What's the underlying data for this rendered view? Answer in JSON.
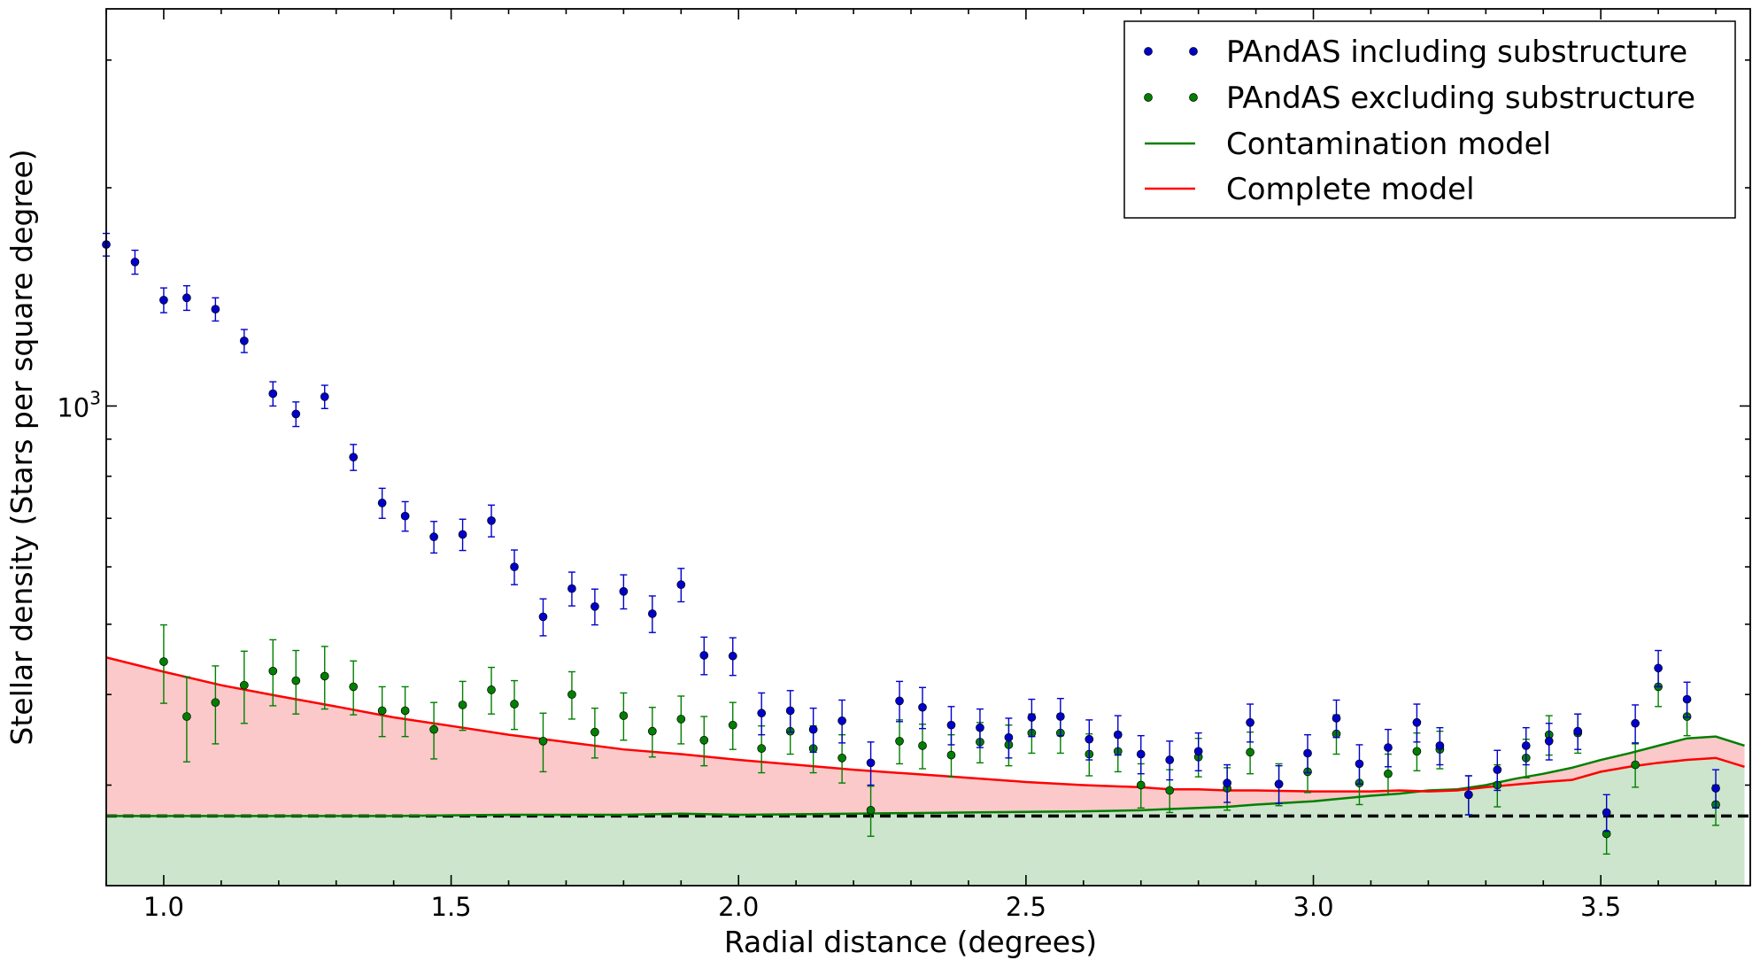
{
  "chart_data": {
    "type": "scatter",
    "title": "",
    "xlabel": "Radial distance (degrees)",
    "ylabel": "Stellar density (Stars per square degree)",
    "xlim": [
      0.9,
      3.76
    ],
    "ylim": [
      218,
      3530
    ],
    "yscale": "log",
    "x_ticks": [
      1.0,
      1.5,
      2.0,
      2.5,
      3.0,
      3.5
    ],
    "x_tick_labels": [
      "1.0",
      "1.5",
      "2.0",
      "2.5",
      "3.0",
      "3.5"
    ],
    "y_major_tick": 1000,
    "y_major_label_base": "10",
    "y_major_label_exp": "3",
    "y_minor_ticks": [
      300,
      400,
      500,
      600,
      700,
      800,
      900,
      2000,
      3000
    ],
    "background_level": 272,
    "legend_position": "top-right",
    "colors": {
      "blue": "#0000cc",
      "green": "#007f00",
      "red": "#ff0000",
      "red_fill": "#fbc9c9",
      "green_fill": "#cce5cc"
    },
    "series": [
      {
        "name": "PAndAS including substructure",
        "kind": "points",
        "x": [
          0.9,
          0.95,
          1.0,
          1.04,
          1.09,
          1.14,
          1.19,
          1.23,
          1.28,
          1.33,
          1.38,
          1.42,
          1.47,
          1.52,
          1.57,
          1.61,
          1.66,
          1.71,
          1.75,
          1.8,
          1.85,
          1.9,
          1.94,
          1.99,
          2.04,
          2.09,
          2.13,
          2.18,
          2.23,
          2.28,
          2.32,
          2.37,
          2.42,
          2.47,
          2.51,
          2.56,
          2.61,
          2.66,
          2.7,
          2.75,
          2.8,
          2.85,
          2.89,
          2.94,
          2.99,
          3.04,
          3.08,
          3.13,
          3.18,
          3.22,
          3.27,
          3.32,
          3.37,
          3.41,
          3.46,
          3.51,
          3.56,
          3.6,
          3.65,
          3.7
        ],
        "y": [
          1670,
          1580,
          1400,
          1410,
          1360,
          1230,
          1040,
          975,
          1030,
          850,
          735,
          705,
          660,
          665,
          695,
          600,
          512,
          560,
          529,
          555,
          517,
          567,
          453,
          452,
          377,
          380,
          358,
          368,
          322,
          392,
          384,
          363,
          360,
          349,
          372,
          373,
          347,
          352,
          331,
          325,
          334,
          302,
          366,
          301,
          332,
          371,
          321,
          338,
          366,
          340,
          291,
          315,
          340,
          345,
          356,
          275,
          365,
          435,
          394,
          297
        ],
        "err": [
          60,
          60,
          55,
          55,
          50,
          45,
          40,
          38,
          38,
          35,
          35,
          33,
          33,
          33,
          35,
          33,
          30,
          30,
          30,
          30,
          30,
          30,
          27,
          27,
          25,
          25,
          25,
          25,
          22,
          25,
          25,
          22,
          22,
          22,
          22,
          22,
          22,
          22,
          20,
          20,
          20,
          18,
          22,
          18,
          20,
          22,
          20,
          20,
          22,
          20,
          18,
          20,
          20,
          20,
          20,
          16,
          22,
          25,
          22,
          18
        ]
      },
      {
        "name": "PAndAS excluding substructure",
        "kind": "points",
        "x": [
          1.0,
          1.04,
          1.09,
          1.14,
          1.19,
          1.23,
          1.28,
          1.33,
          1.38,
          1.42,
          1.47,
          1.52,
          1.57,
          1.61,
          1.66,
          1.71,
          1.75,
          1.8,
          1.85,
          1.9,
          1.94,
          1.99,
          2.04,
          2.09,
          2.13,
          2.18,
          2.23,
          2.28,
          2.32,
          2.37,
          2.42,
          2.47,
          2.51,
          2.56,
          2.61,
          2.66,
          2.7,
          2.75,
          2.8,
          2.85,
          2.89,
          2.94,
          2.99,
          3.04,
          3.08,
          3.13,
          3.18,
          3.22,
          3.27,
          3.32,
          3.37,
          3.41,
          3.46,
          3.51,
          3.56,
          3.6,
          3.65,
          3.7
        ],
        "y": [
          444,
          373,
          390,
          412,
          431,
          418,
          424,
          410,
          380,
          380,
          358,
          387,
          406,
          388,
          345,
          400,
          355,
          374,
          356,
          370,
          346,
          363,
          337,
          356,
          337,
          327,
          277,
          345,
          340,
          330,
          344,
          341,
          354,
          354,
          331,
          334,
          300,
          295,
          328,
          297,
          333,
          301,
          313,
          353,
          302,
          311,
          334,
          336,
          291,
          300,
          327,
          352,
          354,
          257,
          320,
          410,
          373,
          282
        ],
        "err": [
          55,
          50,
          48,
          47,
          45,
          42,
          42,
          35,
          30,
          30,
          32,
          30,
          30,
          30,
          32,
          30,
          28,
          28,
          28,
          28,
          27,
          27,
          25,
          25,
          25,
          25,
          22,
          24,
          24,
          22,
          22,
          22,
          22,
          22,
          22,
          21,
          21,
          20,
          20,
          20,
          22,
          20,
          20,
          22,
          20,
          20,
          20,
          20,
          18,
          20,
          20,
          22,
          22,
          16,
          22,
          25,
          22,
          18
        ]
      },
      {
        "name": "Contamination model",
        "kind": "line",
        "x": [
          0.9,
          1.0,
          1.2,
          1.4,
          1.6,
          1.8,
          1.9,
          2.0,
          2.2,
          2.4,
          2.6,
          2.7,
          2.75,
          2.8,
          2.85,
          2.9,
          3.0,
          3.1,
          3.15,
          3.2,
          3.25,
          3.3,
          3.35,
          3.4,
          3.45,
          3.5,
          3.55,
          3.6,
          3.65,
          3.7,
          3.75
        ],
        "y": [
          272,
          272,
          272,
          272,
          273,
          273,
          274,
          273,
          274,
          275,
          276,
          277,
          278,
          279,
          280,
          282,
          285,
          290,
          292,
          295,
          296,
          300,
          306,
          311,
          317,
          325,
          332,
          340,
          348,
          350,
          340
        ]
      },
      {
        "name": "Complete model",
        "kind": "line",
        "x": [
          0.9,
          1.0,
          1.1,
          1.2,
          1.3,
          1.4,
          1.5,
          1.6,
          1.7,
          1.8,
          1.9,
          2.0,
          2.1,
          2.2,
          2.3,
          2.4,
          2.5,
          2.6,
          2.7,
          2.75,
          2.8,
          2.85,
          2.9,
          3.0,
          3.1,
          3.15,
          3.2,
          3.25,
          3.3,
          3.4,
          3.45,
          3.5,
          3.55,
          3.6,
          3.65,
          3.7,
          3.75
        ],
        "y": [
          450,
          430,
          412,
          398,
          385,
          372,
          362,
          352,
          344,
          336,
          331,
          325,
          320,
          315,
          311,
          307,
          303,
          300,
          298,
          296,
          296,
          295,
          295,
          294,
          294,
          295,
          294,
          295,
          298,
          303,
          305,
          313,
          318,
          322,
          325,
          327,
          318
        ]
      }
    ]
  }
}
